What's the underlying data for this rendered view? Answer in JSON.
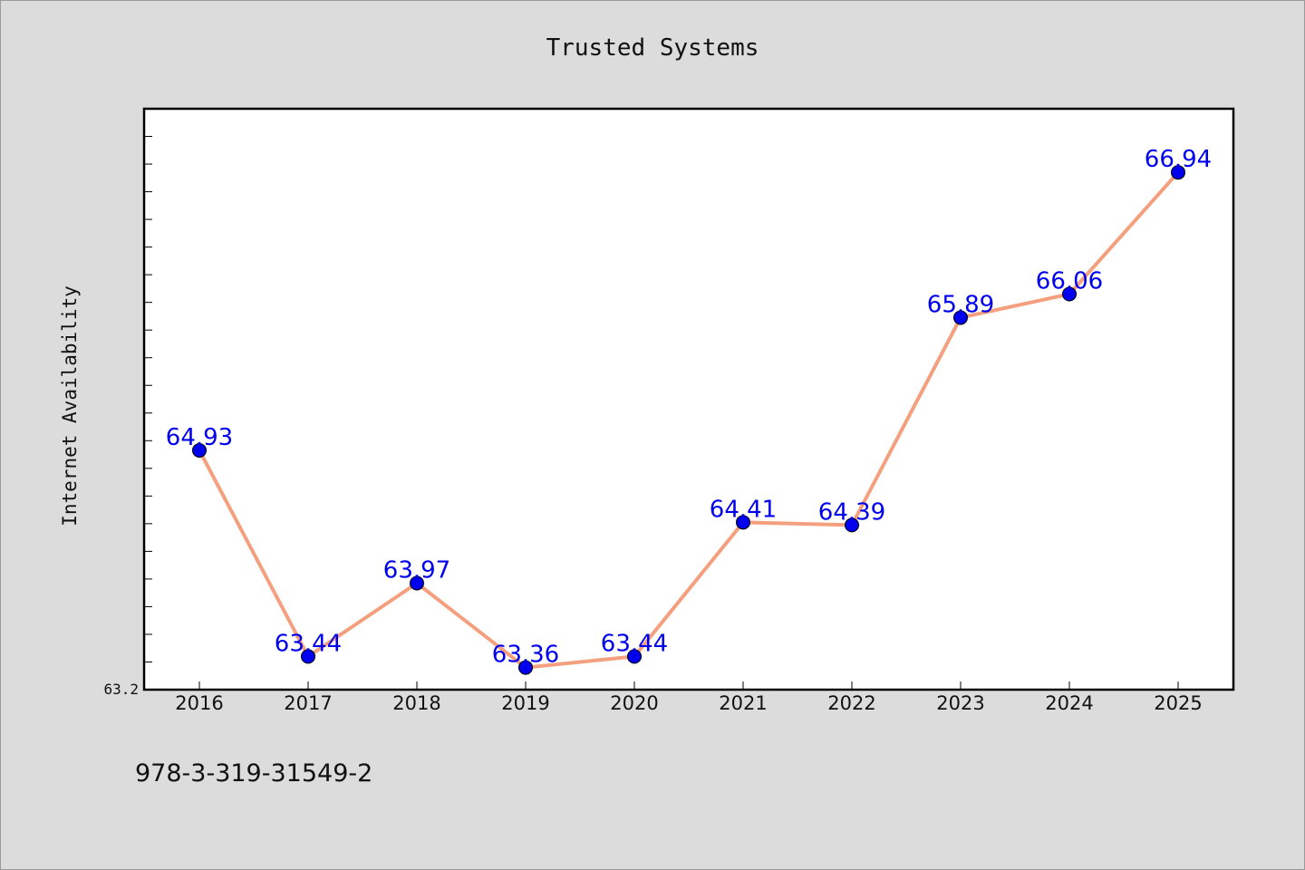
{
  "chart_data": {
    "type": "line",
    "title": "Trusted Systems",
    "xlabel": "",
    "ylabel": "Internet Availability",
    "categories": [
      "2016",
      "2017",
      "2018",
      "2019",
      "2020",
      "2021",
      "2022",
      "2023",
      "2024",
      "2025"
    ],
    "series": [
      {
        "values": [
          64.93,
          63.44,
          63.97,
          63.36,
          63.44,
          64.41,
          64.39,
          65.89,
          66.06,
          66.94
        ],
        "labels": [
          "64.93",
          "63.44",
          "63.97",
          "63.36",
          "63.44",
          "64.41",
          "64.39",
          "65.89",
          "66.06",
          "66.94"
        ]
      }
    ],
    "y_tick_labels": [
      "63.2"
    ],
    "ylim": [
      63.2,
      67.4
    ],
    "grid": false,
    "legend": "none"
  },
  "footnote": "978-3-319-31549-2",
  "colors": {
    "background": "#dcdcdc",
    "plot_area": "#ffffff",
    "line": "#f4a07e",
    "marker": "#0000ee",
    "data_label": "#0000ee"
  }
}
